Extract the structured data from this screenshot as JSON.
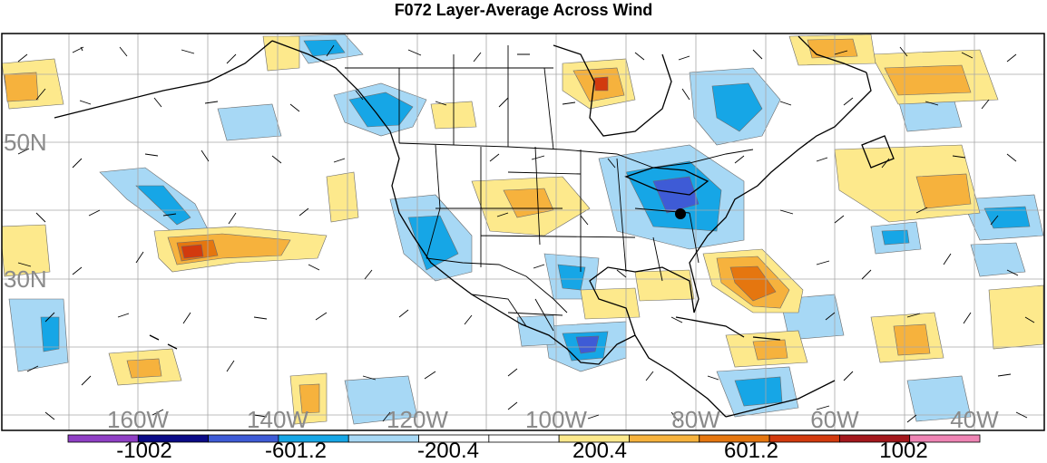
{
  "title": "F072 Layer-Average Across Wind",
  "lat_labels": [
    "50N",
    "30N"
  ],
  "lon_labels": [
    "160W",
    "140W",
    "120W",
    "100W",
    "80W",
    "60W",
    "40W"
  ],
  "colorbar": {
    "labels": [
      "-1002",
      "-601.2",
      "-200.4",
      "200.4",
      "601.2",
      "1002"
    ],
    "colors": [
      "#8f3fc4",
      "#0a0a86",
      "#3e5bd6",
      "#16a6e6",
      "#a7d8f5",
      "#ffffff",
      "#ffffff",
      "#fde98c",
      "#f6b23d",
      "#e5760f",
      "#d23a0e",
      "#a3171c",
      "#ee84b4"
    ]
  },
  "shading_colors": {
    "neg_weak": "#a7d8f5",
    "neg_mod": "#16a6e6",
    "neg_strong": "#3e5bd6",
    "pos_weak": "#fde98c",
    "pos_mod": "#f6b23d",
    "pos_strong": "#e5760f",
    "pos_vstrong": "#d23a0e"
  },
  "marker": {
    "name": "station-dot",
    "lat": 38.8,
    "lon": -77.0
  }
}
